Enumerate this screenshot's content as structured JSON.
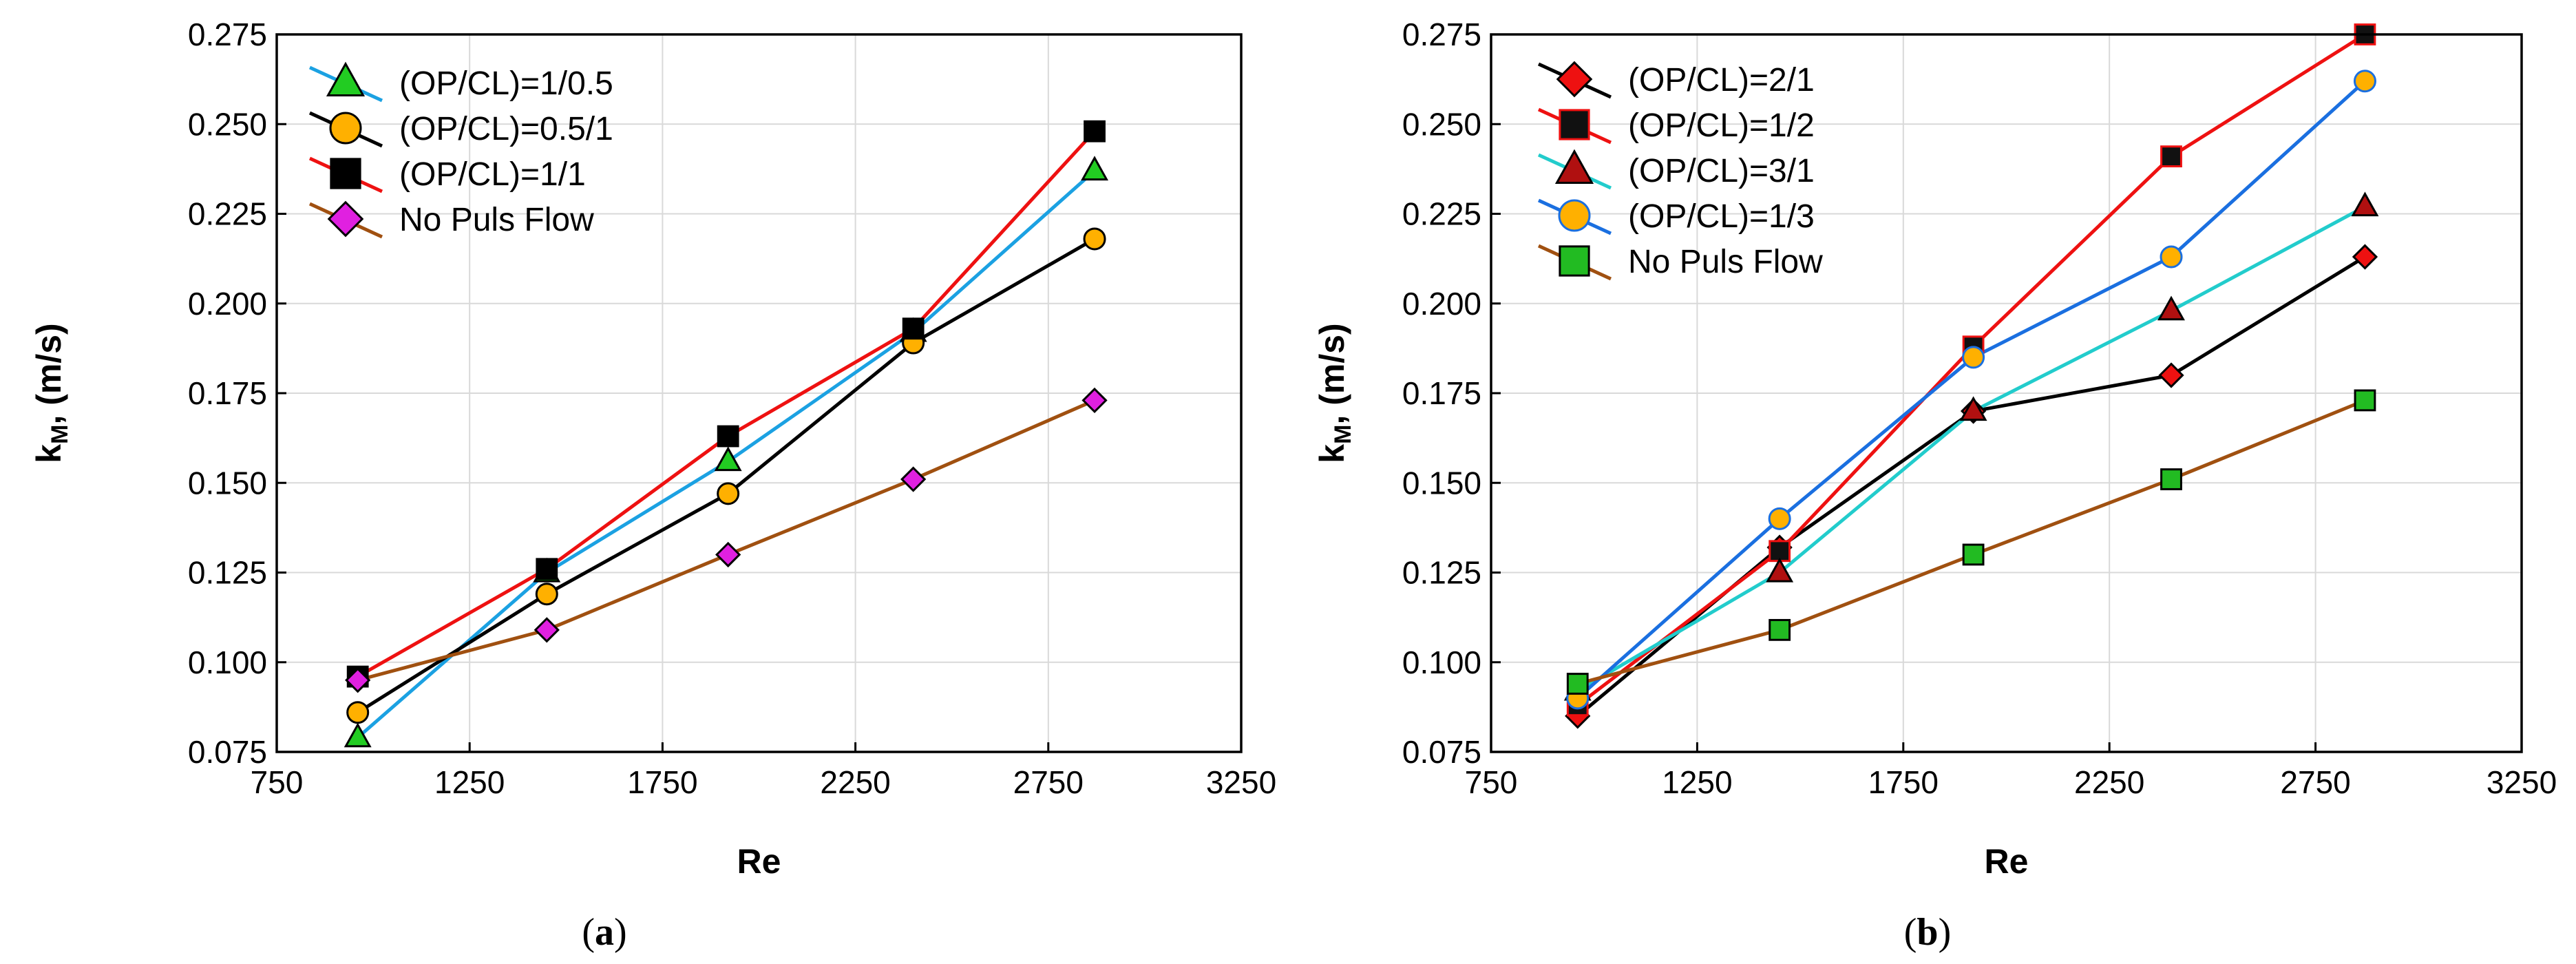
{
  "chart_data": [
    {
      "type": "line",
      "caption": "a",
      "xlabel": "Re",
      "ylabel_main": "k",
      "ylabel_sub": "M",
      "ylabel_rest": ", (m/s)",
      "xlim": [
        750,
        3250
      ],
      "ylim": [
        0.075,
        0.275
      ],
      "xticks": [
        750,
        1250,
        1750,
        2250,
        2750,
        3250
      ],
      "xtick_labels": [
        "750",
        "1250",
        "1750",
        "2250",
        "2750",
        "3250"
      ],
      "yticks": [
        0.075,
        0.1,
        0.125,
        0.15,
        0.175,
        0.2,
        0.225,
        0.25,
        0.275
      ],
      "ytick_labels": [
        "0.075",
        "0.100",
        "0.125",
        "0.150",
        "0.175",
        "0.200",
        "0.225",
        "0.250",
        "0.275"
      ],
      "grid": true,
      "legend_position": "top-left",
      "x": [
        960,
        1450,
        1920,
        2400,
        2870
      ],
      "series": [
        {
          "name": "(OP/CL)=1/0.5",
          "marker": "triangle",
          "line_color": "#1ba1e2",
          "marker_color": "#22cc22",
          "values": [
            0.079,
            0.125,
            0.156,
            0.192,
            0.237
          ]
        },
        {
          "name": "(OP/CL)=0.5/1",
          "marker": "circle",
          "line_color": "#000000",
          "marker_color": "#ffb000",
          "values": [
            0.086,
            0.119,
            0.147,
            0.189,
            0.218
          ]
        },
        {
          "name": "(OP/CL)=1/1",
          "marker": "square",
          "line_color": "#ee1111",
          "marker_color": "#000000",
          "values": [
            0.096,
            0.126,
            0.163,
            0.193,
            0.248
          ]
        },
        {
          "name": "No Puls Flow",
          "marker": "diamond",
          "line_color": "#a05010",
          "marker_color": "#e020e0",
          "values": [
            0.095,
            0.109,
            0.13,
            0.151,
            0.173
          ]
        }
      ]
    },
    {
      "type": "line",
      "caption": "b",
      "xlabel": "Re",
      "ylabel_main": "k",
      "ylabel_sub": "M",
      "ylabel_rest": ", (m/s)",
      "xlim": [
        750,
        3250
      ],
      "ylim": [
        0.075,
        0.275
      ],
      "xticks": [
        750,
        1250,
        1750,
        2250,
        2750,
        3250
      ],
      "xtick_labels": [
        "750",
        "1250",
        "1750",
        "2250",
        "2750",
        "3250"
      ],
      "yticks": [
        0.075,
        0.1,
        0.125,
        0.15,
        0.175,
        0.2,
        0.225,
        0.25,
        0.275
      ],
      "ytick_labels": [
        "0.075",
        "0.100",
        "0.125",
        "0.150",
        "0.175",
        "0.200",
        "0.225",
        "0.250",
        "0.275"
      ],
      "grid": true,
      "legend_position": "top-left",
      "x": [
        960,
        1450,
        1920,
        2400,
        2870
      ],
      "series": [
        {
          "name": "(OP/CL)=2/1",
          "marker": "diamond",
          "line_color": "#000000",
          "marker_color": "#ee1111",
          "values": [
            0.085,
            0.132,
            0.17,
            0.18,
            0.213
          ]
        },
        {
          "name": "(OP/CL)=1/2",
          "marker": "square",
          "line_color": "#ee1111",
          "marker_color": "#111111",
          "marker_edge": "#ee1111",
          "values": [
            0.088,
            0.131,
            0.188,
            0.241,
            0.275
          ]
        },
        {
          "name": "(OP/CL)=3/1",
          "marker": "triangle",
          "line_color": "#22cccc",
          "marker_color": "#b01010",
          "values": [
            0.092,
            0.125,
            0.17,
            0.198,
            0.227
          ]
        },
        {
          "name": "(OP/CL)=1/3",
          "marker": "circle",
          "line_color": "#1a6fe0",
          "marker_color": "#ffb000",
          "marker_edge": "#1a6fe0",
          "values": [
            0.09,
            0.14,
            0.185,
            0.213,
            0.262
          ]
        },
        {
          "name": "No Puls Flow",
          "marker": "square",
          "line_color": "#a05010",
          "marker_color": "#22bb22",
          "values": [
            0.094,
            0.109,
            0.13,
            0.151,
            0.173
          ]
        }
      ]
    }
  ]
}
